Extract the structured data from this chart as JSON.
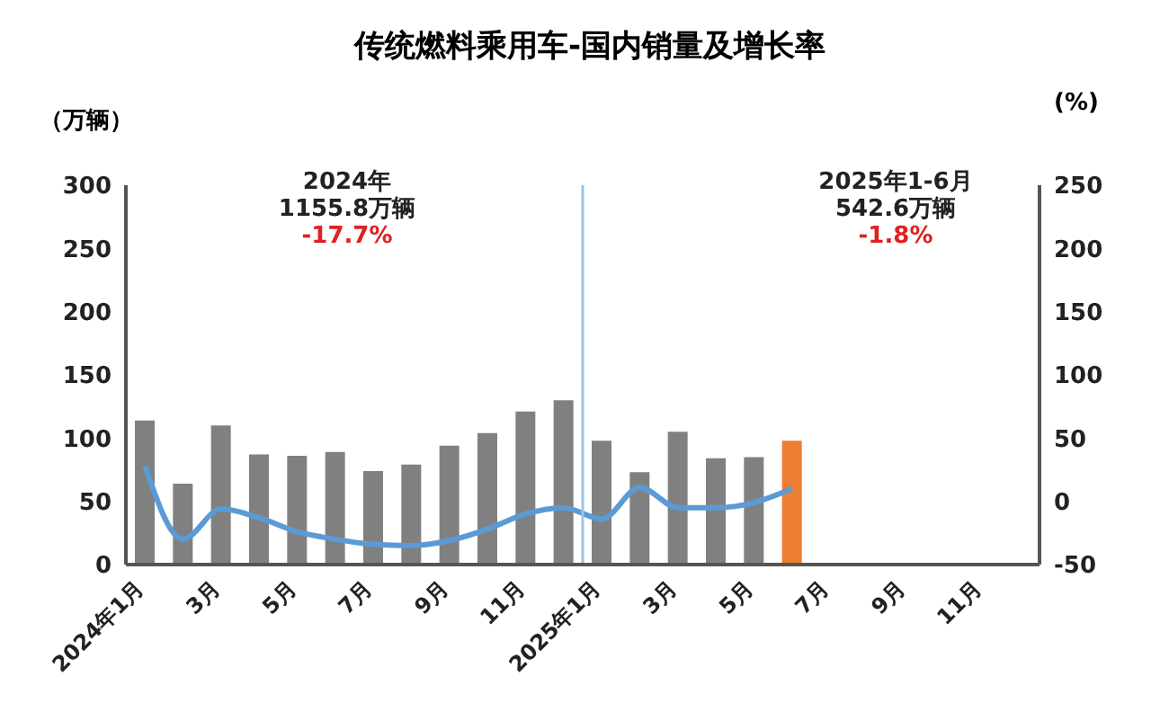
{
  "chart_data": {
    "type": "bar",
    "title": "传统燃料乘用车-国内销量及增长率",
    "ylabel": "（万辆）",
    "y2label": "(%)",
    "annotations": [
      "2024年",
      "1155.8万辆",
      "-17.7%",
      "2025年1-6月",
      "542.6万辆",
      "-1.8%"
    ],
    "x": [
      "2024-01",
      "2024-02",
      "2024-03",
      "2024-04",
      "2024-05",
      "2024-06",
      "2024-07",
      "2024-08",
      "2024-09",
      "2024-10",
      "2024-11",
      "2024-12",
      "2025-01",
      "2025-02",
      "2025-03",
      "2025-04",
      "2025-05",
      "2025-06"
    ],
    "xlim": [
      "2023-12-16",
      "2025-12-16"
    ],
    "xticks": [
      {
        "value": "2024-01",
        "label": "2024年1月"
      },
      {
        "value": "2024-03",
        "label": "3月"
      },
      {
        "value": "2024-05",
        "label": "5月"
      },
      {
        "value": "2024-07",
        "label": "7月"
      },
      {
        "value": "2024-09",
        "label": "9月"
      },
      {
        "value": "2024-11",
        "label": "11月"
      },
      {
        "value": "2025-01",
        "label": "2025年1月"
      },
      {
        "value": "2025-03",
        "label": "3月"
      },
      {
        "value": "2025-05",
        "label": "5月"
      },
      {
        "value": "2025-07",
        "label": "7月"
      },
      {
        "value": "2025-09",
        "label": "9月"
      },
      {
        "value": "2025-11",
        "label": "11月"
      }
    ],
    "ylim": [
      0,
      300
    ],
    "yticks": [
      0,
      50,
      100,
      150,
      200,
      250,
      300
    ],
    "y2lim": [
      -50,
      250
    ],
    "y2ticks": [
      -50,
      0,
      50,
      100,
      150,
      200,
      250
    ],
    "series": [
      {
        "colors": [
          "#808080",
          "#808080",
          "#808080",
          "#808080",
          "#808080",
          "#808080",
          "#808080",
          "#808080",
          "#808080",
          "#808080",
          "#808080",
          "#808080",
          "#808080",
          "#808080",
          "#808080",
          "#808080",
          "#808080",
          "#ed7d31"
        ],
        "values": [
          114,
          64,
          110,
          87,
          86,
          89,
          74,
          79,
          94,
          104,
          121,
          130,
          98,
          73,
          105,
          84,
          85,
          98
        ]
      },
      {
        "type": "line",
        "axis": "y2",
        "color": "#5b9bd5",
        "values": [
          28,
          -30,
          -6,
          -13,
          -24,
          -30,
          -34,
          -35,
          -31,
          -22,
          -10,
          -5,
          -14,
          11,
          -5,
          -5,
          -1,
          10
        ]
      }
    ],
    "ref_lines": [
      {
        "axis": "x",
        "value": "2024-12-16",
        "color": "#9dc3e6"
      }
    ],
    "grid": false,
    "legend": false,
    "marker": "none",
    "line_style": "solid"
  }
}
